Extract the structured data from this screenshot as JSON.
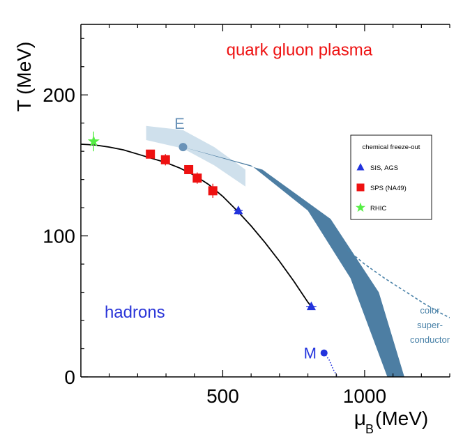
{
  "chart_data": {
    "type": "scatter",
    "title": "",
    "xlabel": "μ",
    "xlabel_sub": "B",
    "xlabel_unit": "(MeV)",
    "ylabel": "T (MeV)",
    "xlim": [
      0,
      1300
    ],
    "ylim": [
      0,
      250
    ],
    "x_ticks": [
      500,
      1000
    ],
    "y_ticks": [
      0,
      100,
      200
    ],
    "grid": false,
    "legend_position": "right",
    "legend_title": "chemical freeze-out",
    "series": [
      {
        "name": "SIS, AGS",
        "marker": "triangle",
        "color": "#2233dd",
        "points": [
          {
            "x": 555,
            "y": 118,
            "xerr": 15,
            "yerr": 3
          },
          {
            "x": 812,
            "y": 50,
            "xerr": 18,
            "yerr": 0
          }
        ]
      },
      {
        "name": "SPS (NA49)",
        "marker": "square",
        "color": "#ee1111",
        "points": [
          {
            "x": 245,
            "y": 158,
            "yerr": 3
          },
          {
            "x": 298,
            "y": 154,
            "yerr": 4
          },
          {
            "x": 380,
            "y": 147,
            "yerr": 3
          },
          {
            "x": 410,
            "y": 141,
            "yerr": 4
          },
          {
            "x": 465,
            "y": 132,
            "yerr": 5
          }
        ]
      },
      {
        "name": "RHIC",
        "marker": "star",
        "color": "#55ee44",
        "points": [
          {
            "x": 45,
            "y": 167,
            "yerr": 7
          }
        ]
      }
    ],
    "freezeout_curve": {
      "x": [
        0,
        50,
        100,
        150,
        200,
        250,
        300,
        350,
        400,
        450,
        500,
        550,
        600,
        650,
        700,
        750,
        800,
        812
      ],
      "y": [
        165,
        164.5,
        163,
        161,
        158,
        155,
        152,
        148,
        143,
        136.5,
        128,
        118,
        107,
        95,
        82,
        68,
        53,
        50
      ]
    },
    "crossover_region": {
      "x": [
        230,
        360,
        470,
        580,
        580,
        470,
        360,
        230
      ],
      "y": [
        178,
        175,
        163,
        147,
        135,
        150,
        162,
        168
      ]
    },
    "phase_band": {
      "upper": [
        [
          360,
          163
        ],
        [
          600,
          150
        ],
        [
          800,
          118
        ],
        [
          950,
          70
        ],
        [
          1080,
          0
        ]
      ],
      "lower": [
        [
          360,
          163
        ],
        [
          640,
          147
        ],
        [
          880,
          112
        ],
        [
          1050,
          60
        ],
        [
          1140,
          0
        ]
      ]
    },
    "critical_point": {
      "label": "E",
      "x": 360,
      "y": 163,
      "color": "#6a93b8"
    },
    "color_superconductor_boundary": {
      "x": [
        940,
        1000,
        1070,
        1140,
        1210,
        1270,
        1300
      ],
      "y": [
        90,
        80,
        70,
        61,
        52,
        45,
        42
      ]
    },
    "nuclear_matter": {
      "label": "M",
      "point": {
        "x": 857,
        "y": 17
      },
      "x": [
        857,
        875,
        890,
        905
      ],
      "y": [
        17,
        12,
        5,
        0
      ]
    },
    "annotations": {
      "qgp": {
        "text": "quark gluon plasma",
        "x": 770,
        "y": 228,
        "color": "#ee1111"
      },
      "hadrons": {
        "text": "hadrons",
        "x": 190,
        "y": 42,
        "color": "#2a35d8"
      },
      "csc": [
        "color",
        "super-",
        "conductor"
      ],
      "csc_pos": {
        "x": 1230,
        "y": 45
      },
      "csc_color": "#4a82a8"
    },
    "colors": {
      "band": "#4d7ea3",
      "crossover": "#cfe0ec",
      "curve": "#000000",
      "axis": "#000000"
    }
  }
}
